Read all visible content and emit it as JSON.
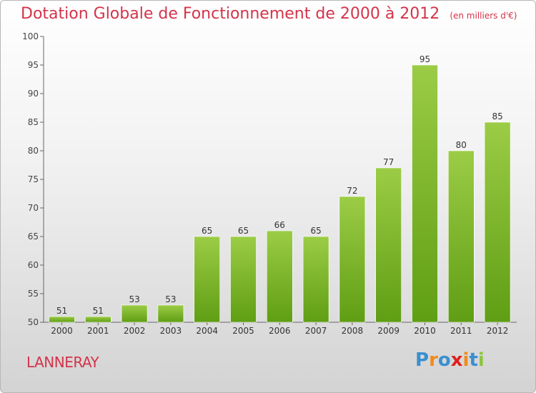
{
  "title": "Dotation Globale de Fonctionnement de 2000 à 2012",
  "subtitle": "(en milliers d'€)",
  "commune": "LANNERAY",
  "brand": {
    "letters": [
      "P",
      "r",
      "o",
      "x",
      "i",
      "t",
      "i"
    ],
    "colors": [
      "#3a8fd0",
      "#f08a1c",
      "#3a8fd0",
      "#e02020",
      "#f08a1c",
      "#3a8fd0",
      "#8cc63f"
    ]
  },
  "colors": {
    "bar_top": "#9ccc46",
    "bar_bottom": "#5f9e14",
    "title": "#d4344a"
  },
  "chart_data": {
    "type": "bar",
    "categories": [
      "2000",
      "2001",
      "2002",
      "2003",
      "2004",
      "2005",
      "2006",
      "2007",
      "2008",
      "2009",
      "2010",
      "2011",
      "2012"
    ],
    "values": [
      51,
      51,
      53,
      53,
      65,
      65,
      66,
      65,
      72,
      77,
      95,
      80,
      85
    ],
    "ylim": [
      50,
      100
    ],
    "yticks": [
      50,
      55,
      60,
      65,
      70,
      75,
      80,
      85,
      90,
      95,
      100
    ],
    "grid": false,
    "legend": "none"
  }
}
